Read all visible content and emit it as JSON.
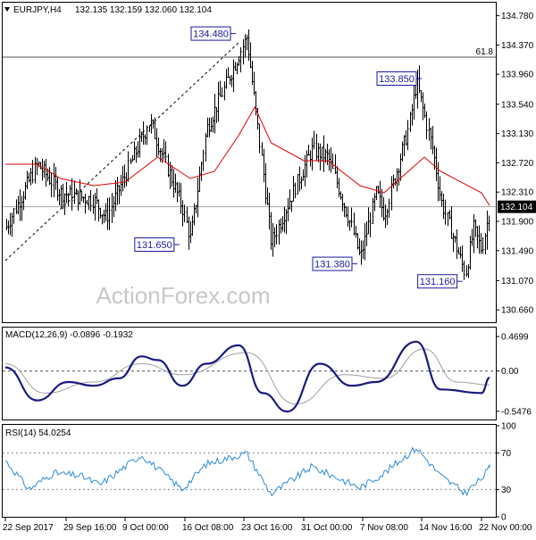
{
  "header": {
    "symbol": "EURJPY,H4",
    "ohlc": "132.135 132.159 132.060 132.104"
  },
  "watermark": "ActionForex.com",
  "colors": {
    "candle": "#000000",
    "ma": "#e00000",
    "fib": "#555555",
    "trend": "#000000",
    "macd_main": "#1a1a80",
    "macd_signal": "#a0a0a0",
    "rsi": "#2a8bd8",
    "current_price_bg": "#000000"
  },
  "chart_data": [
    {
      "type": "candlestick",
      "title": "EURJPY,H4",
      "y_ticks": [
        "134.780",
        "134.370",
        "133.960",
        "133.540",
        "133.130",
        "132.720",
        "132.310",
        "131.900",
        "131.490",
        "131.070",
        "130.660"
      ],
      "ylim": [
        130.5,
        134.95
      ],
      "current_price": "132.104",
      "fib_level": {
        "label": "61.8",
        "value": 134.2
      },
      "annotations": [
        {
          "label": "134.480",
          "value": 134.48
        },
        {
          "label": "131.650",
          "value": 131.65
        },
        {
          "label": "133.850",
          "value": 133.85
        },
        {
          "label": "131.380",
          "value": 131.38
        },
        {
          "label": "131.160",
          "value": 131.16
        }
      ],
      "swing_path": [
        {
          "date": "2017-09-22",
          "close": 131.8
        },
        {
          "date": "2017-09-26",
          "close": 132.7
        },
        {
          "date": "2017-09-29",
          "close": 132.3
        },
        {
          "date": "2017-10-04",
          "close": 132.2
        },
        {
          "date": "2017-10-06",
          "close": 131.95
        },
        {
          "date": "2017-10-10",
          "close": 132.8
        },
        {
          "date": "2017-10-12",
          "close": 133.3
        },
        {
          "date": "2017-10-16",
          "close": 132.1
        },
        {
          "date": "2017-10-17",
          "close": 131.65
        },
        {
          "date": "2017-10-19",
          "close": 133.2
        },
        {
          "date": "2017-10-24",
          "close": 134.48
        },
        {
          "date": "2017-10-26",
          "close": 132.6
        },
        {
          "date": "2017-10-27",
          "close": 131.6
        },
        {
          "date": "2017-10-30",
          "close": 132.4
        },
        {
          "date": "2017-11-01",
          "close": 132.9
        },
        {
          "date": "2017-11-03",
          "close": 132.8
        },
        {
          "date": "2017-11-06",
          "close": 131.8
        },
        {
          "date": "2017-11-07",
          "close": 131.38
        },
        {
          "date": "2017-11-09",
          "close": 132.3
        },
        {
          "date": "2017-11-10",
          "close": 132.0
        },
        {
          "date": "2017-11-13",
          "close": 133.2
        },
        {
          "date": "2017-11-14",
          "close": 133.85
        },
        {
          "date": "2017-11-16",
          "close": 132.9
        },
        {
          "date": "2017-11-17",
          "close": 132.2
        },
        {
          "date": "2017-11-20",
          "close": 131.16
        },
        {
          "date": "2017-11-21",
          "close": 131.8
        },
        {
          "date": "2017-11-22",
          "close": 131.5
        },
        {
          "date": "2017-11-23",
          "close": 132.1
        }
      ],
      "ma_path": [
        {
          "date": "2017-09-22",
          "value": 132.7
        },
        {
          "date": "2017-09-26",
          "value": 132.7
        },
        {
          "date": "2017-09-29",
          "value": 132.5
        },
        {
          "date": "2017-10-04",
          "value": 132.4
        },
        {
          "date": "2017-10-09",
          "value": 132.45
        },
        {
          "date": "2017-10-13",
          "value": 132.8
        },
        {
          "date": "2017-10-17",
          "value": 132.5
        },
        {
          "date": "2017-10-20",
          "value": 132.6
        },
        {
          "date": "2017-10-23",
          "value": 133.1
        },
        {
          "date": "2017-10-25",
          "value": 133.5
        },
        {
          "date": "2017-10-27",
          "value": 133.0
        },
        {
          "date": "2017-10-31",
          "value": 132.75
        },
        {
          "date": "2017-11-03",
          "value": 132.75
        },
        {
          "date": "2017-11-07",
          "value": 132.4
        },
        {
          "date": "2017-11-10",
          "value": 132.3
        },
        {
          "date": "2017-11-13",
          "value": 132.6
        },
        {
          "date": "2017-11-15",
          "value": 132.8
        },
        {
          "date": "2017-11-17",
          "value": 132.6
        },
        {
          "date": "2017-11-22",
          "value": 132.3
        },
        {
          "date": "2017-11-23",
          "value": 132.12
        }
      ],
      "trendline": [
        {
          "date": "2017-09-22",
          "value": 131.35
        },
        {
          "date": "2017-10-23",
          "value": 134.4
        }
      ]
    },
    {
      "type": "line",
      "title": "MACD(12,26,9) -0.0896 -0.1932",
      "y_ticks": [
        "0.4699",
        "0.00",
        "-0.5476"
      ],
      "ylim": [
        -0.66,
        0.58
      ],
      "series": [
        {
          "name": "MACD",
          "points": [
            {
              "date": "2017-09-22",
              "value": 0.05
            },
            {
              "date": "2017-09-26",
              "value": -0.4
            },
            {
              "date": "2017-09-30",
              "value": -0.15
            },
            {
              "date": "2017-10-04",
              "value": -0.2
            },
            {
              "date": "2017-10-08",
              "value": -0.1
            },
            {
              "date": "2017-10-11",
              "value": 0.2
            },
            {
              "date": "2017-10-13",
              "value": 0.15
            },
            {
              "date": "2017-10-16",
              "value": -0.2
            },
            {
              "date": "2017-10-19",
              "value": 0.1
            },
            {
              "date": "2017-10-23",
              "value": 0.35
            },
            {
              "date": "2017-10-26",
              "value": -0.3
            },
            {
              "date": "2017-10-29",
              "value": -0.55
            },
            {
              "date": "2017-11-02",
              "value": 0.1
            },
            {
              "date": "2017-11-06",
              "value": -0.2
            },
            {
              "date": "2017-11-09",
              "value": -0.15
            },
            {
              "date": "2017-11-14",
              "value": 0.4
            },
            {
              "date": "2017-11-17",
              "value": -0.25
            },
            {
              "date": "2017-11-22",
              "value": -0.3
            },
            {
              "date": "2017-11-23",
              "value": -0.09
            }
          ]
        },
        {
          "name": "Signal",
          "points": [
            {
              "date": "2017-09-22",
              "value": 0.1
            },
            {
              "date": "2017-09-27",
              "value": -0.3
            },
            {
              "date": "2017-10-04",
              "value": -0.15
            },
            {
              "date": "2017-10-11",
              "value": 0.1
            },
            {
              "date": "2017-10-16",
              "value": -0.05
            },
            {
              "date": "2017-10-24",
              "value": 0.25
            },
            {
              "date": "2017-10-30",
              "value": -0.45
            },
            {
              "date": "2017-11-05",
              "value": -0.05
            },
            {
              "date": "2017-11-10",
              "value": -0.1
            },
            {
              "date": "2017-11-15",
              "value": 0.3
            },
            {
              "date": "2017-11-19",
              "value": -0.15
            },
            {
              "date": "2017-11-23",
              "value": -0.19
            }
          ]
        }
      ]
    },
    {
      "type": "line",
      "title": "RSI(14) 54.0254",
      "y_ticks": [
        "100",
        "70",
        "30",
        "0"
      ],
      "ylim": [
        0,
        100
      ],
      "levels": [
        70,
        30
      ],
      "series": [
        {
          "name": "RSI",
          "points": [
            {
              "date": "2017-09-22",
              "value": 62
            },
            {
              "date": "2017-09-25",
              "value": 30
            },
            {
              "date": "2017-09-28",
              "value": 48
            },
            {
              "date": "2017-10-02",
              "value": 45
            },
            {
              "date": "2017-10-05",
              "value": 35
            },
            {
              "date": "2017-10-11",
              "value": 68
            },
            {
              "date": "2017-10-16",
              "value": 30
            },
            {
              "date": "2017-10-19",
              "value": 58
            },
            {
              "date": "2017-10-24",
              "value": 70
            },
            {
              "date": "2017-10-27",
              "value": 25
            },
            {
              "date": "2017-11-01",
              "value": 55
            },
            {
              "date": "2017-11-07",
              "value": 32
            },
            {
              "date": "2017-11-10",
              "value": 48
            },
            {
              "date": "2017-11-14",
              "value": 76
            },
            {
              "date": "2017-11-17",
              "value": 45
            },
            {
              "date": "2017-11-20",
              "value": 26
            },
            {
              "date": "2017-11-22",
              "value": 42
            },
            {
              "date": "2017-11-23",
              "value": 54
            }
          ]
        }
      ]
    }
  ],
  "x_axis": {
    "ticks": [
      {
        "label": "22 Sep 2017",
        "date": "2017-09-22 00:00"
      },
      {
        "label": "29 Sep 16:00",
        "date": "2017-09-29 16:00"
      },
      {
        "label": "9 Oct 00:00",
        "date": "2017-10-09 00:00"
      },
      {
        "label": "16 Oct 08:00",
        "date": "2017-10-16 08:00"
      },
      {
        "label": "23 Oct 16:00",
        "date": "2017-10-23 16:00"
      },
      {
        "label": "31 Oct 00:00",
        "date": "2017-10-31 00:00"
      },
      {
        "label": "7 Nov 08:00",
        "date": "2017-11-07 08:00"
      },
      {
        "label": "14 Nov 16:00",
        "date": "2017-11-14 16:00"
      },
      {
        "label": "22 Nov 00:00",
        "date": "2017-11-22 00:00"
      }
    ]
  }
}
